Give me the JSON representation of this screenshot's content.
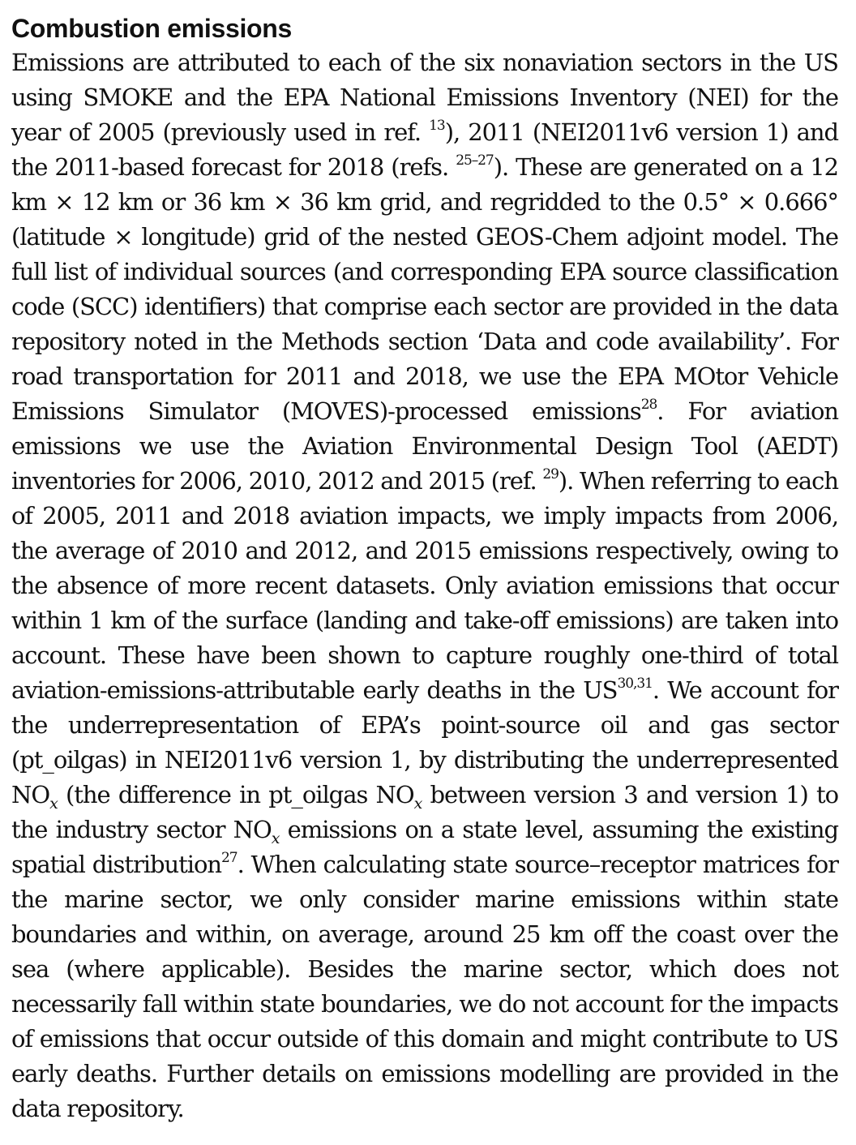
{
  "section": {
    "heading": "Combustion emissions",
    "paragraph": [
      {
        "t": "text",
        "v": "Emissions are attributed to each of the six nonaviation sectors in the US using SMOKE and the EPA National Emissions Inventory (NEI) for the year of 2005 (previously used in ref. "
      },
      {
        "t": "sup",
        "v": "13"
      },
      {
        "t": "text",
        "v": "), 2011 (NEI2011v6 version 1) and the 2011-based forecast for 2018 (refs. "
      },
      {
        "t": "sup",
        "v": "25–27"
      },
      {
        "t": "text",
        "v": "). These are generated on a 12 km × 12 km or 36 km × 36 km grid, and regridded to the 0.5° × 0.666° (latitude × longitude) grid of the nested GEOS-Chem adjoint model. The full list of individual sources (and corresponding EPA source classification code (SCC) identifiers) that comprise each sector are provided in the data repository noted in the Methods section ‘Data and code availability’. For road transportation for 2011 and 2018, we use the EPA MOtor Vehicle Emissions Simulator (MOVES)-processed emissions"
      },
      {
        "t": "sup",
        "v": "28"
      },
      {
        "t": "text",
        "v": ". For aviation emissions we use the Aviation Environmen­tal Design Tool (AEDT) inventories for 2006, 2010, 2012 and 2015 (ref. "
      },
      {
        "t": "sup",
        "v": "29"
      },
      {
        "t": "text",
        "v": "). When referring to each of 2005, 2011 and 2018 aviation impacts, we imply impacts from 2006, the average of 2010 and 2012, and 2015 emissions respectively, owing to the absence of more recent datasets. Only aviation emissions that occur within 1 km of the surface (landing and take-off emissions) are taken into account. These have been shown to capture roughly one-third of total aviation-emissions-attributable early deaths in the US"
      },
      {
        "t": "sup",
        "v": "30,31"
      },
      {
        "t": "text",
        "v": ". We account for the underrepresentation of EPA’s point-source oil and gas sector (pt_oilgas) in NEI2011v6 version 1, by distributing the underrepresented NO"
      },
      {
        "t": "sub",
        "v": "x"
      },
      {
        "t": "text",
        "v": " (the difference in pt_oilgas NO"
      },
      {
        "t": "sub",
        "v": "x"
      },
      {
        "t": "text",
        "v": " between version 3 and version 1) to the industry sector NO"
      },
      {
        "t": "sub",
        "v": "x"
      },
      {
        "t": "text",
        "v": " emis­sions on a state level, assuming the existing spatial distribution"
      },
      {
        "t": "sup",
        "v": "27"
      },
      {
        "t": "text",
        "v": ". When calculating state source–receptor matrices for the marine sector, we only consider marine emissions within state boundaries and within, on average, around 25 km off the coast over the sea (where applicable). Besides the marine sector, which does not necessarily fall within state boundaries, we do not account for the impacts of emissions that occur outside of this domain and might contribute to US early deaths. Further details on emissions modelling are provided in the data repository."
      }
    ]
  }
}
